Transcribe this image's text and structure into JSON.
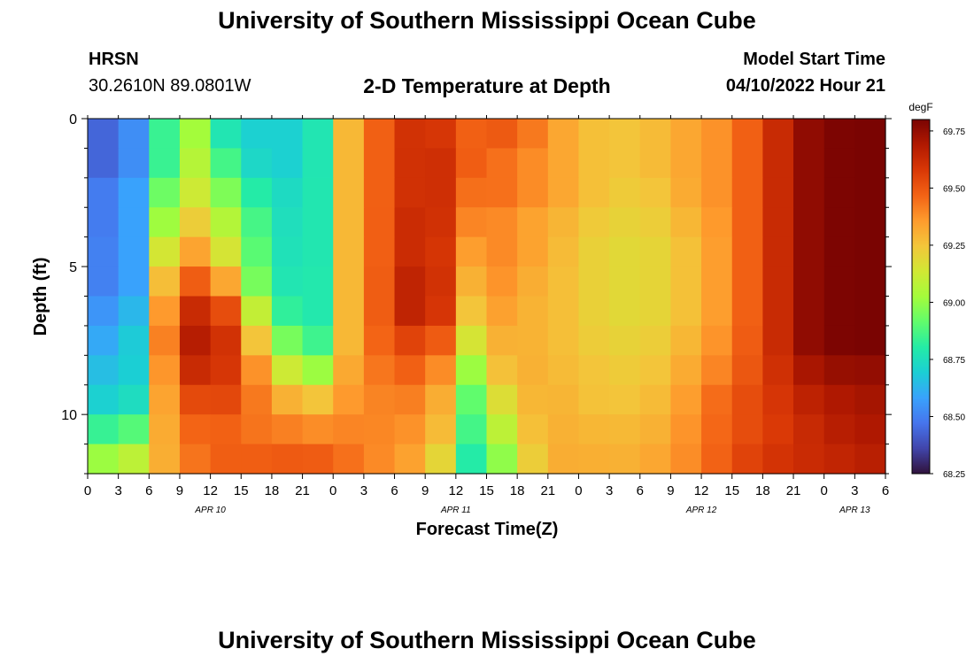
{
  "header": {
    "title": "University of Southern Mississippi Ocean Cube",
    "station": "HRSN",
    "coords": "30.2610N  89.0801W",
    "subtitle": "2-D Temperature at Depth",
    "model_start_label": "Model Start Time",
    "model_start_value": "04/10/2022 Hour 21"
  },
  "footer": {
    "title": "University of Southern Mississippi Ocean Cube"
  },
  "chart_data": {
    "type": "heatmap",
    "title": "2-D Temperature at Depth",
    "xlabel": "Forecast Time(Z)",
    "ylabel": "Depth (ft)",
    "x_hours": [
      0,
      3,
      6,
      9,
      12,
      15,
      18,
      21,
      24,
      27,
      30,
      33,
      36,
      39,
      42,
      45,
      48,
      51,
      54,
      57,
      60,
      63,
      66,
      69,
      72,
      75,
      78
    ],
    "x_tick_labels": [
      "0",
      "3",
      "6",
      "9",
      "12",
      "15",
      "18",
      "21",
      "0",
      "3",
      "6",
      "9",
      "12",
      "15",
      "18",
      "21",
      "0",
      "3",
      "6",
      "9",
      "12",
      "15",
      "18",
      "21",
      "0",
      "3",
      "6"
    ],
    "x_range": [
      0,
      78
    ],
    "date_labels": [
      {
        "text": "APR 10",
        "hour": 12
      },
      {
        "text": "APR 11",
        "hour": 36
      },
      {
        "text": "APR 12",
        "hour": 60
      },
      {
        "text": "APR 13",
        "hour": 75
      }
    ],
    "y_ticks": [
      0,
      5,
      10
    ],
    "y_range": [
      0,
      12
    ],
    "colorbar": {
      "label": "degF",
      "min": 68.25,
      "max": 69.8,
      "ticks": [
        "68.25",
        "68.50",
        "68.75",
        "69.00",
        "69.25",
        "69.50",
        "69.75"
      ],
      "colors": [
        "#30123b",
        "#4145ab",
        "#4675ed",
        "#39a2fc",
        "#1bcfd4",
        "#24eca6",
        "#61fc6c",
        "#a4fc3b",
        "#d1e834",
        "#f3c63a",
        "#fe9b2d",
        "#f36315",
        "#d93806",
        "#b11901",
        "#7a0402"
      ]
    },
    "depth_levels_ft": [
      0.5,
      1.5,
      2.5,
      3.5,
      4.5,
      5.5,
      6.5,
      7.5,
      8.5,
      9.5,
      10.5,
      11.5
    ],
    "time_control_hours": [
      0,
      2,
      5,
      8,
      11,
      13,
      15,
      18,
      21,
      23,
      25,
      28,
      31,
      34,
      36,
      38,
      40,
      43,
      45,
      48,
      50,
      54,
      57,
      60,
      63,
      66,
      70,
      74,
      78
    ],
    "temperature_degF": [
      [
        68.4,
        68.45,
        68.55,
        68.9,
        69.05,
        68.8,
        68.7,
        68.7,
        68.7,
        68.8,
        69.25,
        69.45,
        69.6,
        69.6,
        69.55,
        69.45,
        69.5,
        69.45,
        69.35,
        69.3,
        69.25,
        69.25,
        69.3,
        69.35,
        69.4,
        69.55,
        69.75,
        69.8,
        69.8
      ],
      [
        68.4,
        68.45,
        68.55,
        68.9,
        69.1,
        68.9,
        68.75,
        68.7,
        68.7,
        68.8,
        69.25,
        69.45,
        69.6,
        69.62,
        69.58,
        69.45,
        69.45,
        69.4,
        69.35,
        69.3,
        69.25,
        69.25,
        69.3,
        69.35,
        69.4,
        69.55,
        69.75,
        69.8,
        69.8
      ],
      [
        68.45,
        68.5,
        68.6,
        69.0,
        69.15,
        69.0,
        68.85,
        68.75,
        68.72,
        68.8,
        69.25,
        69.45,
        69.6,
        69.62,
        69.58,
        69.4,
        69.45,
        69.4,
        69.35,
        69.3,
        69.25,
        69.22,
        69.28,
        69.35,
        69.4,
        69.55,
        69.75,
        69.8,
        69.8
      ],
      [
        68.45,
        68.5,
        68.6,
        69.1,
        69.25,
        69.1,
        68.95,
        68.78,
        68.72,
        68.8,
        69.25,
        69.45,
        69.62,
        69.62,
        69.55,
        69.35,
        69.4,
        69.35,
        69.3,
        69.28,
        69.22,
        69.2,
        69.25,
        69.32,
        69.4,
        69.55,
        69.75,
        69.8,
        69.8
      ],
      [
        68.5,
        68.5,
        68.6,
        69.25,
        69.35,
        69.2,
        69.0,
        68.8,
        68.72,
        68.8,
        69.25,
        69.45,
        69.62,
        69.62,
        69.5,
        69.3,
        69.4,
        69.35,
        69.3,
        69.25,
        69.2,
        69.18,
        69.22,
        69.3,
        69.4,
        69.55,
        69.75,
        69.8,
        69.8
      ],
      [
        68.5,
        68.5,
        68.6,
        69.4,
        69.5,
        69.4,
        69.1,
        68.8,
        68.75,
        68.8,
        69.25,
        69.45,
        69.65,
        69.65,
        69.45,
        69.25,
        69.38,
        69.32,
        69.28,
        69.25,
        69.2,
        69.18,
        69.22,
        69.3,
        69.4,
        69.55,
        69.75,
        69.8,
        69.8
      ],
      [
        68.55,
        68.55,
        68.65,
        69.5,
        69.65,
        69.6,
        69.3,
        68.9,
        68.75,
        68.8,
        69.25,
        69.45,
        69.65,
        69.65,
        69.4,
        69.2,
        69.35,
        69.3,
        69.28,
        69.25,
        69.2,
        69.18,
        69.22,
        69.3,
        69.4,
        69.55,
        69.75,
        69.8,
        69.8
      ],
      [
        68.6,
        68.6,
        68.7,
        69.55,
        69.7,
        69.65,
        69.45,
        69.05,
        68.85,
        68.85,
        69.25,
        69.45,
        69.55,
        69.55,
        69.3,
        69.1,
        69.3,
        69.3,
        69.28,
        69.25,
        69.22,
        69.2,
        69.25,
        69.32,
        69.42,
        69.55,
        69.75,
        69.8,
        69.8
      ],
      [
        68.65,
        68.65,
        68.7,
        69.5,
        69.65,
        69.6,
        69.55,
        69.2,
        69.05,
        69.0,
        69.3,
        69.42,
        69.48,
        69.45,
        69.2,
        68.95,
        69.25,
        69.3,
        69.3,
        69.25,
        69.25,
        69.22,
        69.28,
        69.35,
        69.45,
        69.55,
        69.7,
        69.75,
        69.75
      ],
      [
        68.7,
        68.7,
        68.75,
        69.45,
        69.55,
        69.55,
        69.5,
        69.35,
        69.25,
        69.25,
        69.35,
        69.4,
        69.42,
        69.38,
        69.1,
        68.85,
        69.15,
        69.28,
        69.3,
        69.28,
        69.25,
        69.25,
        69.3,
        69.4,
        69.5,
        69.55,
        69.65,
        69.7,
        69.72
      ],
      [
        68.8,
        68.85,
        68.9,
        69.4,
        69.48,
        69.48,
        69.45,
        69.42,
        69.4,
        69.38,
        69.4,
        69.4,
        69.38,
        69.35,
        69.05,
        68.8,
        69.05,
        69.25,
        69.3,
        69.3,
        69.28,
        69.28,
        69.32,
        69.42,
        69.5,
        69.55,
        69.62,
        69.68,
        69.7
      ],
      [
        69.05,
        69.0,
        69.1,
        69.35,
        69.45,
        69.48,
        69.48,
        69.48,
        69.5,
        69.48,
        69.45,
        69.4,
        69.35,
        69.28,
        68.95,
        68.75,
        68.95,
        69.2,
        69.3,
        69.32,
        69.3,
        69.3,
        69.35,
        69.42,
        69.52,
        69.58,
        69.62,
        69.65,
        69.68
      ]
    ]
  }
}
